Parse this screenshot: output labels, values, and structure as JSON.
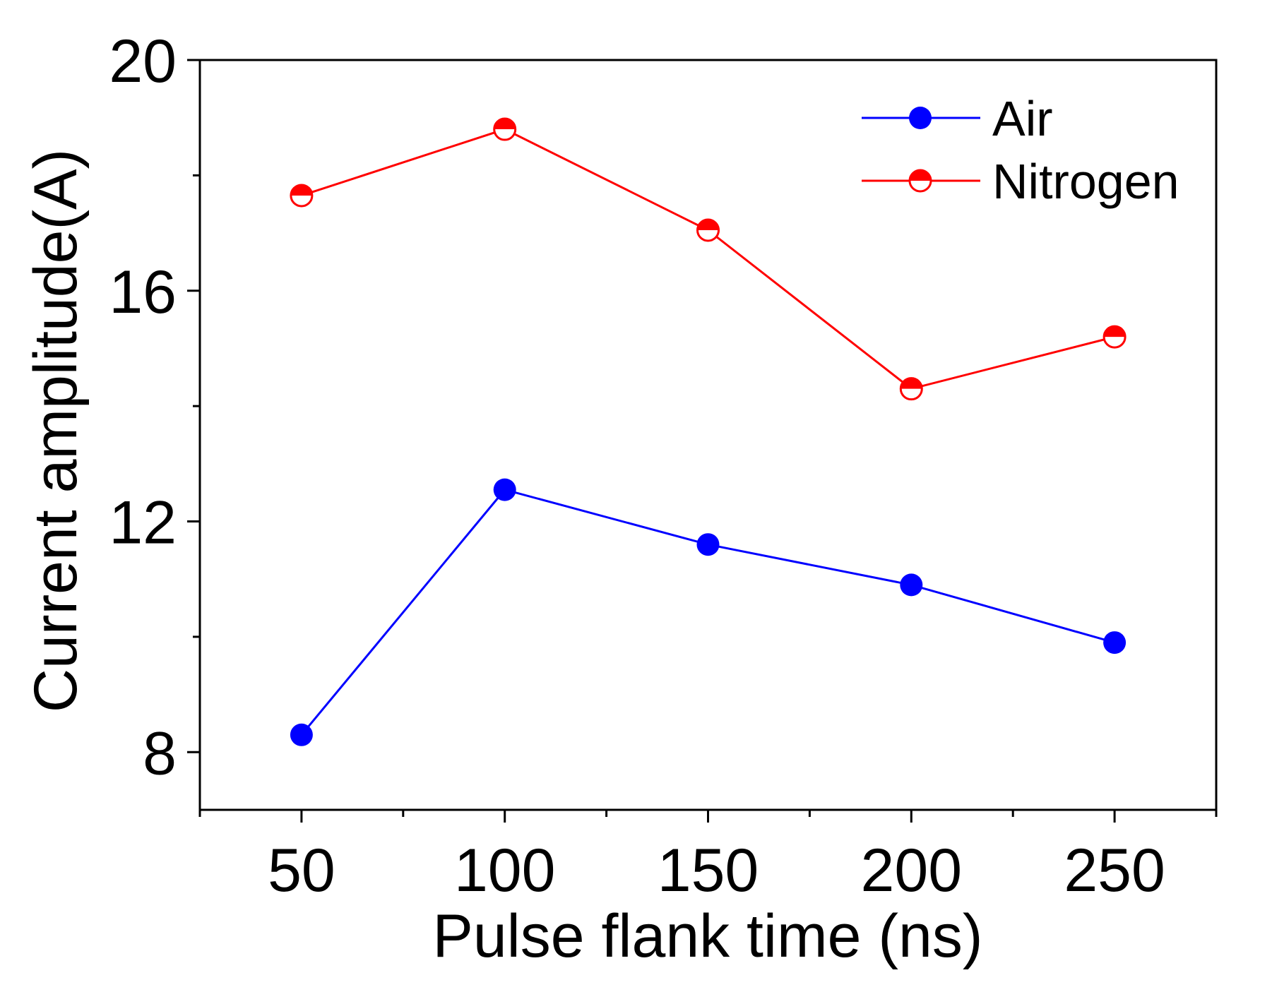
{
  "chart_data": {
    "type": "line",
    "title": "",
    "xlabel": "Pulse flank time (ns)",
    "ylabel": "Current amplitude(A)",
    "xlim": [
      25,
      275
    ],
    "ylim": [
      7,
      20
    ],
    "x": [
      50,
      100,
      150,
      200,
      250
    ],
    "xticks": [
      50,
      100,
      150,
      200,
      250
    ],
    "xticks_minor": [
      25,
      75,
      125,
      175,
      225,
      275
    ],
    "yticks": [
      8,
      12,
      16,
      20
    ],
    "yticks_minor": [
      10,
      14,
      18
    ],
    "grid": false,
    "legend_position": "top-right",
    "series": [
      {
        "name": "Air",
        "color": "#0000ff",
        "marker": "filled-circle",
        "values": [
          8.3,
          12.55,
          11.6,
          10.9,
          9.9
        ]
      },
      {
        "name": "Nitrogen",
        "color": "#ff0000",
        "marker": "half-filled-circle",
        "values": [
          17.65,
          18.8,
          17.05,
          14.3,
          15.2
        ]
      }
    ]
  }
}
